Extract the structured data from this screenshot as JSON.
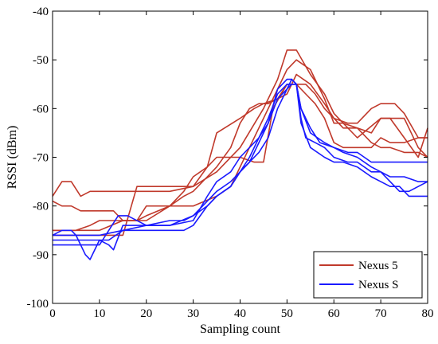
{
  "chart_data": {
    "type": "line",
    "title": "",
    "xlabel": "Sampling count",
    "ylabel": "RSSI (dBm)",
    "xlim": [
      0,
      80
    ],
    "ylim": [
      -100,
      -40
    ],
    "xticks": [
      0,
      10,
      20,
      30,
      40,
      50,
      60,
      70,
      80
    ],
    "yticks": [
      -100,
      -90,
      -80,
      -70,
      -60,
      -50,
      -40
    ],
    "grid": false,
    "legend_position": "bottom-right",
    "legend": [
      {
        "label": "Nexus 5",
        "color": "#c0392b"
      },
      {
        "label": "Nexus S",
        "color": "#1a1aff"
      }
    ],
    "series": [
      {
        "group": "Nexus 5",
        "color": "#c0392b",
        "x": [
          0,
          2,
          4,
          6,
          8,
          10,
          15,
          20,
          25,
          30,
          35,
          40,
          45,
          48,
          50,
          52,
          55,
          58,
          60,
          62,
          65,
          68,
          70,
          72,
          75,
          78,
          80
        ],
        "y": [
          -78,
          -75,
          -75,
          -78,
          -77,
          -77,
          -77,
          -77,
          -77,
          -76,
          -73,
          -68,
          -60,
          -54,
          -48,
          -48,
          -53,
          -57,
          -61,
          -63,
          -64,
          -65,
          -62,
          -62,
          -66,
          -70,
          -64
        ]
      },
      {
        "group": "Nexus 5",
        "color": "#c0392b",
        "x": [
          0,
          2,
          4,
          6,
          8,
          10,
          13,
          15,
          18,
          20,
          25,
          30,
          35,
          38,
          40,
          45,
          48,
          50,
          52,
          55,
          58,
          60,
          62,
          65,
          70,
          75,
          78,
          80
        ],
        "y": [
          -79,
          -80,
          -80,
          -81,
          -81,
          -81,
          -81,
          -83,
          -83,
          -80,
          -80,
          -80,
          -78,
          -76,
          -72,
          -62,
          -56,
          -52,
          -50,
          -52,
          -58,
          -63,
          -63,
          -66,
          -62,
          -62,
          -68,
          -70
        ]
      },
      {
        "group": "Nexus 5",
        "color": "#c0392b",
        "x": [
          0,
          3,
          5,
          8,
          10,
          15,
          18,
          22,
          25,
          28,
          30,
          33,
          35,
          40,
          43,
          45,
          48,
          50,
          52,
          55,
          58,
          60,
          63,
          65,
          68,
          70,
          73,
          75,
          78,
          80
        ],
        "y": [
          -86,
          -86,
          -86,
          -86,
          -86,
          -86,
          -76,
          -76,
          -76,
          -76,
          -76,
          -72,
          -65,
          -62,
          -60,
          -59,
          -58,
          -57,
          -53,
          -55,
          -59,
          -62,
          -63,
          -63,
          -60,
          -59,
          -59,
          -61,
          -66,
          -66
        ]
      },
      {
        "group": "Nexus 5",
        "color": "#c0392b",
        "x": [
          0,
          5,
          10,
          15,
          20,
          25,
          28,
          30,
          33,
          35,
          38,
          40,
          43,
          45,
          47,
          50,
          52,
          54,
          56,
          58,
          60,
          62,
          65,
          68,
          70,
          72,
          75,
          78,
          80
        ],
        "y": [
          -85,
          -85,
          -85,
          -83,
          -83,
          -80,
          -77,
          -74,
          -72,
          -70,
          -70,
          -70,
          -71,
          -71,
          -60,
          -55,
          -55,
          -57,
          -59,
          -62,
          -67,
          -68,
          -68,
          -68,
          -66,
          -67,
          -67,
          -66,
          -66
        ]
      },
      {
        "group": "Nexus 5",
        "color": "#c0392b",
        "x": [
          0,
          3,
          5,
          8,
          10,
          13,
          15,
          18,
          20,
          25,
          28,
          30,
          33,
          35,
          38,
          40,
          42,
          44,
          46,
          48,
          50,
          52,
          54,
          56,
          58,
          60,
          62,
          65,
          68,
          70,
          72,
          75,
          78,
          80
        ],
        "y": [
          -85,
          -85,
          -85,
          -84,
          -83,
          -83,
          -83,
          -83,
          -82,
          -80,
          -78,
          -77,
          -74,
          -72,
          -68,
          -63,
          -60,
          -59,
          -59,
          -58,
          -55,
          -55,
          -55,
          -57,
          -60,
          -62,
          -64,
          -64,
          -67,
          -68,
          -68,
          -69,
          -69,
          -70
        ]
      },
      {
        "group": "Nexus S",
        "color": "#1a1aff",
        "x": [
          0,
          2,
          4,
          5,
          7,
          8,
          10,
          12,
          15,
          20,
          25,
          28,
          30,
          33,
          35,
          38,
          40,
          42,
          44,
          46,
          48,
          50,
          51,
          52,
          53,
          54,
          56,
          58,
          60,
          63,
          65,
          68,
          70,
          72,
          74,
          76,
          78,
          80
        ],
        "y": [
          -86,
          -85,
          -85,
          -86,
          -90,
          -91,
          -87,
          -87,
          -85,
          -85,
          -85,
          -85,
          -84,
          -80,
          -78,
          -76,
          -73,
          -70,
          -66,
          -63,
          -56,
          -54,
          -54,
          -55,
          -62,
          -66,
          -67,
          -68,
          -70,
          -71,
          -71,
          -73,
          -73,
          -75,
          -77,
          -77,
          -76,
          -75
        ]
      },
      {
        "group": "Nexus S",
        "color": "#1a1aff",
        "x": [
          0,
          5,
          10,
          12,
          13,
          15,
          20,
          25,
          30,
          33,
          35,
          38,
          40,
          42,
          44,
          46,
          48,
          50,
          51,
          52,
          53,
          55,
          57,
          60,
          62,
          65,
          68,
          70,
          72,
          75,
          78,
          80
        ],
        "y": [
          -87,
          -87,
          -87,
          -88,
          -89,
          -84,
          -84,
          -84,
          -83,
          -78,
          -75,
          -73,
          -70,
          -68,
          -66,
          -62,
          -57,
          -55,
          -55,
          -55,
          -60,
          -64,
          -67,
          -68,
          -69,
          -70,
          -72,
          -73,
          -74,
          -74,
          -75,
          -75
        ]
      },
      {
        "group": "Nexus S",
        "color": "#1a1aff",
        "x": [
          0,
          5,
          10,
          12,
          14,
          16,
          20,
          25,
          28,
          30,
          33,
          35,
          38,
          40,
          42,
          44,
          46,
          48,
          50,
          51,
          52,
          53,
          55,
          58,
          60,
          63,
          65,
          68,
          70,
          72,
          75,
          80
        ],
        "y": [
          -88,
          -88,
          -88,
          -85,
          -82,
          -82,
          -84,
          -83,
          -83,
          -82,
          -79,
          -77,
          -75,
          -73,
          -71,
          -69,
          -66,
          -60,
          -56,
          -55,
          -55,
          -60,
          -65,
          -67,
          -68,
          -69,
          -69,
          -71,
          -71,
          -71,
          -71,
          -71
        ]
      },
      {
        "group": "Nexus S",
        "color": "#1a1aff",
        "x": [
          0,
          5,
          10,
          15,
          20,
          25,
          30,
          33,
          35,
          38,
          40,
          42,
          44,
          46,
          48,
          50,
          51,
          52,
          53,
          55,
          58,
          60,
          62,
          65,
          68,
          70,
          72,
          74,
          76,
          78,
          80
        ],
        "y": [
          -86,
          -86,
          -86,
          -85,
          -84,
          -84,
          -82,
          -80,
          -78,
          -76,
          -73,
          -71,
          -67,
          -63,
          -58,
          -56,
          -54,
          -55,
          -63,
          -68,
          -70,
          -71,
          -71,
          -72,
          -74,
          -75,
          -76,
          -76,
          -78,
          -78,
          -78
        ]
      }
    ]
  }
}
